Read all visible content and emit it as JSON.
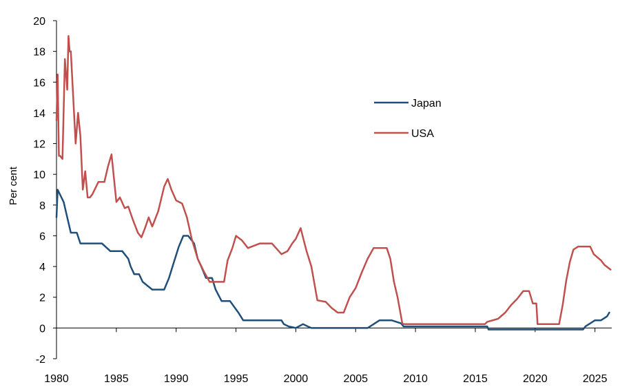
{
  "chart_data": {
    "type": "line",
    "title": "",
    "xlabel": "",
    "ylabel": "Per cent",
    "xlim": [
      1980,
      2026.4
    ],
    "ylim": [
      -2,
      20
    ],
    "x_ticks": [
      "1980",
      "1985",
      "1990",
      "1995",
      "2000",
      "2005",
      "2010",
      "2015",
      "2020",
      "2025"
    ],
    "y_ticks": [
      "-2",
      "0",
      "2",
      "4",
      "6",
      "8",
      "10",
      "12",
      "14",
      "16",
      "18",
      "20"
    ],
    "grid": false,
    "legend_position": "center-right",
    "series": [
      {
        "name": "Japan",
        "color": "#1f4e79",
        "x": [
          1980.0,
          1980.1,
          1980.6,
          1980.9,
          1981.2,
          1981.7,
          1982.0,
          1983.0,
          1983.8,
          1984.5,
          1985.5,
          1986.0,
          1986.2,
          1986.5,
          1986.9,
          1987.2,
          1988.0,
          1989.0,
          1989.4,
          1989.8,
          1990.2,
          1990.6,
          1991.0,
          1991.5,
          1991.8,
          1992.1,
          1992.5,
          1993.0,
          1993.3,
          1993.8,
          1994.5,
          1995.2,
          1995.6,
          1996.0,
          1997.0,
          1998.0,
          1998.8,
          1999.0,
          1999.4,
          2000.0,
          2000.6,
          2001.0,
          2001.3,
          2002.0,
          2003.0,
          2004.0,
          2005.0,
          2006.0,
          2006.5,
          2007.0,
          2007.5,
          2008.0,
          2008.8,
          2009.0,
          2010.0,
          2012.0,
          2014.0,
          2016.0,
          2016.1,
          2018.0,
          2020.0,
          2022.0,
          2024.0,
          2024.2,
          2024.5,
          2025.0,
          2025.5,
          2026.0,
          2026.2
        ],
        "values": [
          7.2,
          9.0,
          8.2,
          7.2,
          6.2,
          6.2,
          5.5,
          5.5,
          5.5,
          5.0,
          5.0,
          4.5,
          4.0,
          3.5,
          3.5,
          3.0,
          2.5,
          2.5,
          3.25,
          4.25,
          5.25,
          6.0,
          6.0,
          5.5,
          4.5,
          4.0,
          3.25,
          3.25,
          2.5,
          1.75,
          1.75,
          1.0,
          0.5,
          0.5,
          0.5,
          0.5,
          0.5,
          0.25,
          0.1,
          0.0,
          0.25,
          0.1,
          0.0,
          0.0,
          0.0,
          0.0,
          0.0,
          0.0,
          0.25,
          0.5,
          0.5,
          0.5,
          0.3,
          0.1,
          0.1,
          0.1,
          0.1,
          0.1,
          -0.1,
          -0.1,
          -0.1,
          -0.1,
          -0.1,
          0.1,
          0.25,
          0.5,
          0.5,
          0.75,
          1.0
        ]
      },
      {
        "name": "USA",
        "color": "#c0504d",
        "x": [
          1980.0,
          1980.1,
          1980.2,
          1980.3,
          1980.5,
          1980.7,
          1980.9,
          1981.0,
          1981.1,
          1981.2,
          1981.4,
          1981.6,
          1981.8,
          1982.0,
          1982.2,
          1982.4,
          1982.6,
          1982.8,
          1983.0,
          1983.5,
          1984.0,
          1984.3,
          1984.6,
          1985.0,
          1985.3,
          1985.7,
          1986.0,
          1986.4,
          1986.8,
          1987.1,
          1987.4,
          1987.7,
          1988.0,
          1988.5,
          1989.0,
          1989.3,
          1989.6,
          1990.0,
          1990.5,
          1990.9,
          1991.3,
          1991.8,
          1992.3,
          1992.8,
          1993.5,
          1994.0,
          1994.3,
          1994.7,
          1995.0,
          1995.5,
          1996.0,
          1997.0,
          1998.0,
          1998.8,
          1999.3,
          1999.7,
          2000.0,
          2000.4,
          2000.9,
          2001.3,
          2001.8,
          2002.5,
          2003.0,
          2003.5,
          2004.0,
          2004.5,
          2005.0,
          2005.5,
          2006.0,
          2006.5,
          2007.0,
          2007.6,
          2007.9,
          2008.2,
          2008.5,
          2008.9,
          2009.0,
          2012.0,
          2015.8,
          2016.0,
          2016.9,
          2017.5,
          2018.0,
          2018.5,
          2019.0,
          2019.5,
          2019.8,
          2020.1,
          2020.2,
          2021.0,
          2022.0,
          2022.3,
          2022.6,
          2022.9,
          2023.2,
          2023.6,
          2024.0,
          2024.6,
          2024.9,
          2025.5,
          2025.8,
          2026.3
        ],
        "values": [
          13.5,
          16.5,
          11.2,
          11.2,
          11.0,
          17.5,
          15.5,
          19.0,
          18.0,
          18.0,
          15.0,
          12.0,
          14.0,
          12.5,
          9.0,
          10.2,
          8.5,
          8.5,
          8.7,
          9.5,
          9.5,
          10.5,
          11.3,
          8.2,
          8.5,
          7.8,
          7.9,
          7.0,
          6.2,
          5.9,
          6.5,
          7.2,
          6.6,
          7.6,
          9.2,
          9.7,
          9.0,
          8.3,
          8.1,
          7.2,
          5.8,
          4.5,
          3.7,
          3.0,
          3.0,
          3.0,
          4.4,
          5.2,
          6.0,
          5.7,
          5.2,
          5.5,
          5.5,
          4.8,
          5.0,
          5.5,
          5.8,
          6.5,
          5.0,
          4.0,
          1.8,
          1.7,
          1.3,
          1.0,
          1.0,
          2.0,
          2.6,
          3.6,
          4.5,
          5.2,
          5.2,
          5.2,
          4.5,
          3.0,
          2.0,
          0.3,
          0.25,
          0.25,
          0.25,
          0.4,
          0.6,
          1.0,
          1.5,
          1.9,
          2.4,
          2.4,
          1.6,
          1.6,
          0.25,
          0.25,
          0.25,
          1.5,
          3.1,
          4.3,
          5.1,
          5.3,
          5.3,
          5.3,
          4.8,
          4.4,
          4.1,
          3.8
        ]
      }
    ]
  }
}
